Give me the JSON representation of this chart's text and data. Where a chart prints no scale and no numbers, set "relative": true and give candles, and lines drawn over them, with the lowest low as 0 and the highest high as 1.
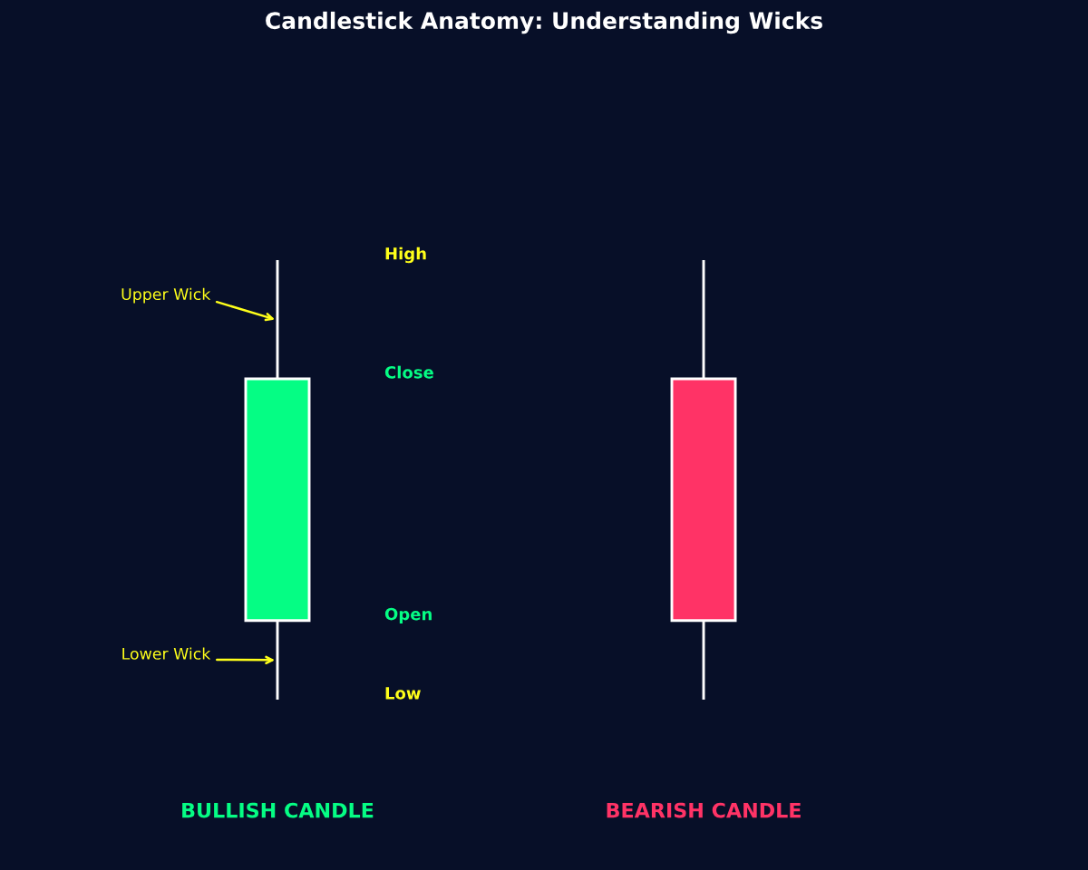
{
  "chart_data": {
    "type": "candlestick",
    "title": "Candlestick Anatomy: Understanding Wicks",
    "categories": [
      "BULLISH CANDLE",
      "BEARISH CANDLE"
    ],
    "ohlc": [
      [
        0.18,
        1,
        0,
        0.73
      ],
      [
        0.73,
        1,
        0,
        0.18
      ]
    ],
    "colors": [
      "#05fd84",
      "#ff3366"
    ],
    "relative": true,
    "annotations": [
      "High",
      "Close",
      "Open",
      "Low",
      "Upper Wick",
      "Lower Wick"
    ]
  }
}
